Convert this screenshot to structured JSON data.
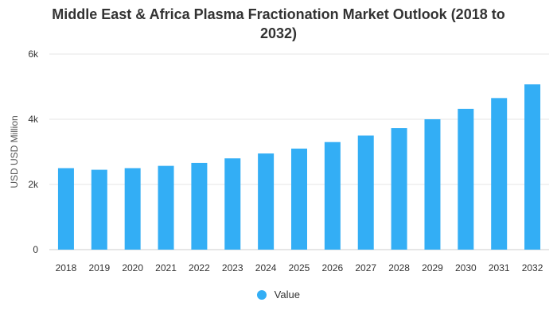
{
  "chart_data": {
    "type": "bar",
    "title_line1": "Middle East & Africa Plasma Fractionation Market Outlook (2018 to",
    "title_line2": "2032)",
    "xlabel": "",
    "ylabel": "USD USD Million",
    "ylim": [
      0,
      6000
    ],
    "yticks": [
      0,
      2000,
      4000,
      6000
    ],
    "ytick_labels": [
      "0",
      "2k",
      "4k",
      "6k"
    ],
    "grid": true,
    "legend_position": "bottom",
    "bar_color": "#33aef5",
    "categories": [
      "2018",
      "2019",
      "2020",
      "2021",
      "2022",
      "2023",
      "2024",
      "2025",
      "2026",
      "2027",
      "2028",
      "2029",
      "2030",
      "2031",
      "2032"
    ],
    "series": [
      {
        "name": "Value",
        "values": [
          2500,
          2450,
          2500,
          2570,
          2660,
          2800,
          2950,
          3100,
          3300,
          3500,
          3730,
          4000,
          4320,
          4650,
          5070
        ]
      }
    ]
  }
}
